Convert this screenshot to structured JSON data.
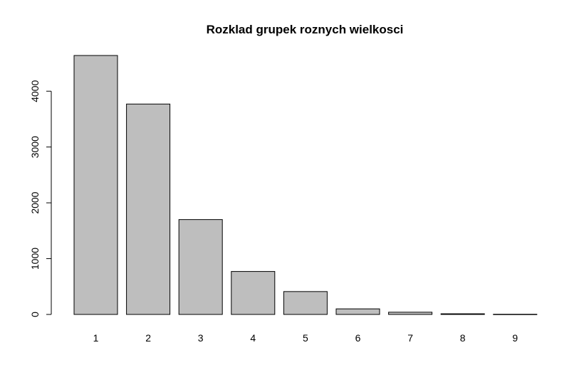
{
  "chart_data": {
    "type": "bar",
    "title": "Rozklad grupek roznych wielkosci",
    "categories": [
      "1",
      "2",
      "3",
      "4",
      "5",
      "6",
      "7",
      "8",
      "9"
    ],
    "values": [
      4640,
      3770,
      1700,
      770,
      410,
      100,
      40,
      12,
      3
    ],
    "ylim": [
      0,
      4640
    ],
    "yticks": [
      "0",
      "1000",
      "2000",
      "3000",
      "4000"
    ],
    "xlabel": "",
    "ylabel": "",
    "grid": false,
    "colors": {
      "bar_fill": "#bebebe",
      "bar_stroke": "#000000"
    }
  }
}
